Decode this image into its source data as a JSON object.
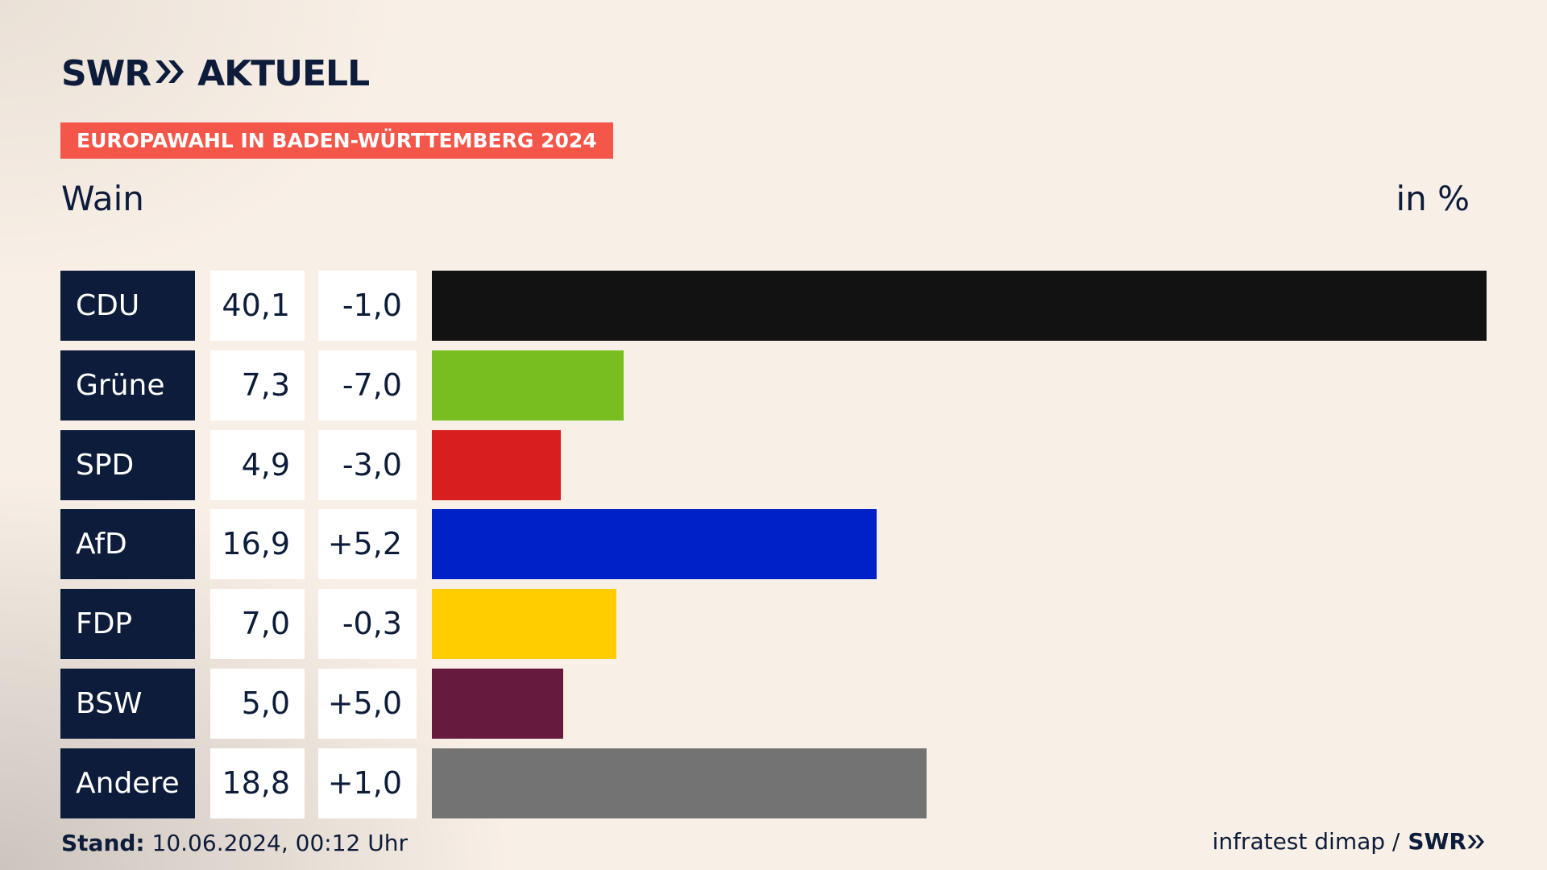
{
  "header": {
    "brand_main": "SWR",
    "brand_sub": "AKTUELL",
    "election_tag": "EUROPAWAHL IN BADEN-WÜRTTEMBERG 2024",
    "region": "Wain",
    "unit": "in %"
  },
  "footer": {
    "stand_label": "Stand:",
    "stand_value": "10.06.2024, 00:12 Uhr",
    "source": "infratest dimap /",
    "source_brand": "SWR"
  },
  "colors": {
    "navy": "#0c1c3a",
    "tag": "#f4574a",
    "background": "#f8efe6"
  },
  "chart_data": {
    "type": "bar",
    "orientation": "horizontal",
    "unit": "in %",
    "categories": [
      "CDU",
      "Grüne",
      "SPD",
      "AfD",
      "FDP",
      "BSW",
      "Andere"
    ],
    "values": [
      40.1,
      7.3,
      4.9,
      16.9,
      7.0,
      5.0,
      18.8
    ],
    "value_labels": [
      "40,1",
      "7,3",
      "4,9",
      "16,9",
      "7,0",
      "5,0",
      "18,8"
    ],
    "diff_labels": [
      "-1,0",
      "-7,0",
      "-3,0",
      "+5,2",
      "-0,3",
      "+5,0",
      "+1,0"
    ],
    "colors": [
      "#121212",
      "#78be1e",
      "#d81e1e",
      "#0021c8",
      "#ffcd00",
      "#661a3e",
      "#737373"
    ],
    "xlim": [
      0,
      40.1
    ]
  }
}
